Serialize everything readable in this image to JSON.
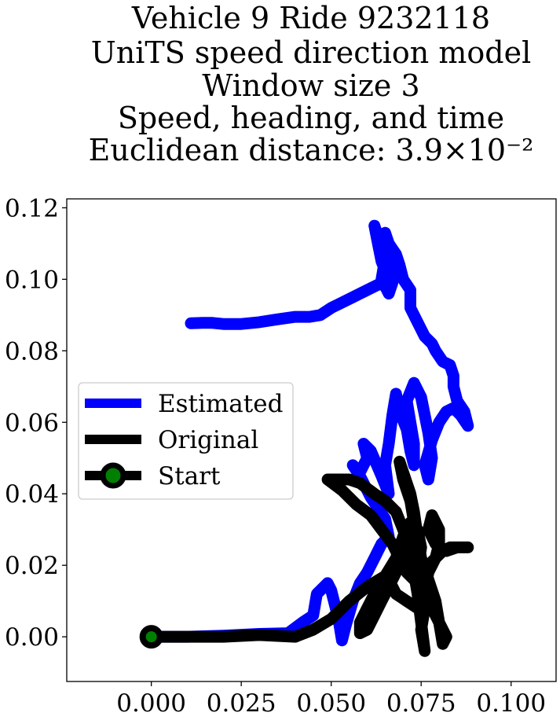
{
  "chart_data": {
    "type": "line",
    "title_lines": [
      "Vehicle 9 Ride 9232118",
      "UniTS speed direction model",
      "Window size 3",
      "Speed, heading, and time",
      "Euclidean distance: 3.9×10⁻²"
    ],
    "xlabel": "",
    "ylabel": "",
    "xlim": [
      -0.0235,
      0.1125
    ],
    "ylim": [
      -0.0125,
      0.1225
    ],
    "xticks": [
      0.0,
      0.025,
      0.05,
      0.075,
      0.1
    ],
    "xtick_labels": [
      "0.000",
      "0.025",
      "0.050",
      "0.075",
      "0.100"
    ],
    "yticks": [
      0.0,
      0.02,
      0.04,
      0.06,
      0.08,
      0.1,
      0.12
    ],
    "ytick_labels": [
      "0.00",
      "0.02",
      "0.04",
      "0.06",
      "0.08",
      "0.10",
      "0.12"
    ],
    "grid": false,
    "legend": {
      "placement": "center-left",
      "entries": [
        "Estimated",
        "Original",
        "Start"
      ]
    },
    "series": [
      {
        "name": "Estimated",
        "color": "#0000ff",
        "points": [
          [
            0.0,
            0.0
          ],
          [
            0.01,
            0.0
          ],
          [
            0.02,
            0.0003
          ],
          [
            0.03,
            0.0008
          ],
          [
            0.038,
            0.001
          ],
          [
            0.042,
            0.004
          ],
          [
            0.045,
            0.006
          ],
          [
            0.046,
            0.012
          ],
          [
            0.048,
            0.014
          ],
          [
            0.049,
            0.015
          ],
          [
            0.05,
            0.013
          ],
          [
            0.052,
            0.005
          ],
          [
            0.053,
            -0.001
          ],
          [
            0.054,
            0.003
          ],
          [
            0.056,
            0.01
          ],
          [
            0.058,
            0.015
          ],
          [
            0.06,
            0.018
          ],
          [
            0.062,
            0.022
          ],
          [
            0.064,
            0.026
          ],
          [
            0.066,
            0.028
          ],
          [
            0.065,
            0.033
          ],
          [
            0.061,
            0.039
          ],
          [
            0.058,
            0.045
          ],
          [
            0.056,
            0.048
          ],
          [
            0.058,
            0.046
          ],
          [
            0.06,
            0.05
          ],
          [
            0.059,
            0.054
          ],
          [
            0.061,
            0.052
          ],
          [
            0.064,
            0.045
          ],
          [
            0.066,
            0.04
          ],
          [
            0.065,
            0.048
          ],
          [
            0.066,
            0.054
          ],
          [
            0.067,
            0.062
          ],
          [
            0.068,
            0.068
          ],
          [
            0.069,
            0.063
          ],
          [
            0.071,
            0.058
          ],
          [
            0.072,
            0.052
          ],
          [
            0.073,
            0.048
          ],
          [
            0.073,
            0.054
          ],
          [
            0.072,
            0.06
          ],
          [
            0.071,
            0.066
          ],
          [
            0.073,
            0.071
          ],
          [
            0.075,
            0.067
          ],
          [
            0.076,
            0.062
          ],
          [
            0.077,
            0.057
          ],
          [
            0.078,
            0.05
          ],
          [
            0.077,
            0.044
          ],
          [
            0.076,
            0.048
          ],
          [
            0.078,
            0.055
          ],
          [
            0.08,
            0.06
          ],
          [
            0.082,
            0.063
          ],
          [
            0.084,
            0.064
          ],
          [
            0.086,
            0.062
          ],
          [
            0.088,
            0.059
          ],
          [
            0.087,
            0.063
          ],
          [
            0.085,
            0.066
          ],
          [
            0.084,
            0.07
          ],
          [
            0.084,
            0.073
          ],
          [
            0.083,
            0.076
          ],
          [
            0.081,
            0.077
          ],
          [
            0.079,
            0.08
          ],
          [
            0.078,
            0.082
          ],
          [
            0.076,
            0.084
          ],
          [
            0.074,
            0.088
          ],
          [
            0.072,
            0.092
          ],
          [
            0.072,
            0.097
          ],
          [
            0.07,
            0.1
          ],
          [
            0.069,
            0.104
          ],
          [
            0.068,
            0.107
          ],
          [
            0.066,
            0.11
          ],
          [
            0.065,
            0.113
          ],
          [
            0.064,
            0.11
          ],
          [
            0.066,
            0.104
          ],
          [
            0.067,
            0.099
          ],
          [
            0.066,
            0.096
          ],
          [
            0.064,
            0.1
          ],
          [
            0.065,
            0.106
          ],
          [
            0.063,
            0.112
          ],
          [
            0.062,
            0.115
          ],
          [
            0.063,
            0.11
          ],
          [
            0.064,
            0.105
          ],
          [
            0.066,
            0.1
          ],
          [
            0.064,
            0.099
          ],
          [
            0.06,
            0.097
          ],
          [
            0.056,
            0.095
          ],
          [
            0.052,
            0.093
          ],
          [
            0.05,
            0.092
          ],
          [
            0.047,
            0.09
          ],
          [
            0.044,
            0.0895
          ],
          [
            0.04,
            0.0895
          ],
          [
            0.035,
            0.0888
          ],
          [
            0.03,
            0.088
          ],
          [
            0.025,
            0.0875
          ],
          [
            0.02,
            0.0875
          ],
          [
            0.017,
            0.0878
          ],
          [
            0.014,
            0.0878
          ],
          [
            0.011,
            0.0877
          ]
        ]
      },
      {
        "name": "Original",
        "color": "#000000",
        "points": [
          [
            0.0,
            0.0
          ],
          [
            0.01,
            0.0
          ],
          [
            0.02,
            0.0
          ],
          [
            0.03,
            0.0005
          ],
          [
            0.04,
            0.0
          ],
          [
            0.045,
            0.002
          ],
          [
            0.05,
            0.005
          ],
          [
            0.055,
            0.01
          ],
          [
            0.06,
            0.014
          ],
          [
            0.065,
            0.017
          ],
          [
            0.068,
            0.022
          ],
          [
            0.07,
            0.028
          ],
          [
            0.072,
            0.032
          ],
          [
            0.074,
            0.03
          ],
          [
            0.075,
            0.025
          ],
          [
            0.074,
            0.018
          ],
          [
            0.076,
            0.012
          ],
          [
            0.078,
            0.008
          ],
          [
            0.08,
            0.004
          ],
          [
            0.082,
            0.0
          ],
          [
            0.081,
            -0.002
          ],
          [
            0.08,
            0.004
          ],
          [
            0.079,
            0.01
          ],
          [
            0.077,
            0.016
          ],
          [
            0.075,
            0.022
          ],
          [
            0.074,
            0.028
          ],
          [
            0.073,
            0.035
          ],
          [
            0.072,
            0.04
          ],
          [
            0.07,
            0.046
          ],
          [
            0.069,
            0.049
          ],
          [
            0.07,
            0.044
          ],
          [
            0.072,
            0.038
          ],
          [
            0.073,
            0.032
          ],
          [
            0.074,
            0.026
          ],
          [
            0.075,
            0.02
          ],
          [
            0.076,
            0.014
          ],
          [
            0.076,
            0.008
          ],
          [
            0.075,
            0.002
          ],
          [
            0.076,
            -0.004
          ],
          [
            0.075,
            0.004
          ],
          [
            0.074,
            0.012
          ],
          [
            0.073,
            0.018
          ],
          [
            0.072,
            0.024
          ],
          [
            0.07,
            0.03
          ],
          [
            0.068,
            0.035
          ],
          [
            0.065,
            0.038
          ],
          [
            0.062,
            0.04
          ],
          [
            0.058,
            0.043
          ],
          [
            0.055,
            0.044
          ],
          [
            0.052,
            0.044
          ],
          [
            0.049,
            0.044
          ],
          [
            0.053,
            0.041
          ],
          [
            0.057,
            0.037
          ],
          [
            0.061,
            0.034
          ],
          [
            0.064,
            0.03
          ],
          [
            0.067,
            0.026
          ],
          [
            0.069,
            0.022
          ],
          [
            0.071,
            0.018
          ],
          [
            0.073,
            0.016
          ],
          [
            0.075,
            0.018
          ],
          [
            0.077,
            0.02
          ],
          [
            0.079,
            0.022
          ],
          [
            0.081,
            0.024
          ],
          [
            0.083,
            0.025
          ],
          [
            0.086,
            0.025
          ],
          [
            0.088,
            0.025
          ],
          [
            0.085,
            0.025
          ],
          [
            0.082,
            0.024
          ],
          [
            0.079,
            0.026
          ],
          [
            0.077,
            0.03
          ],
          [
            0.078,
            0.034
          ],
          [
            0.08,
            0.03
          ],
          [
            0.08,
            0.026
          ],
          [
            0.079,
            0.022
          ],
          [
            0.077,
            0.018
          ],
          [
            0.076,
            0.012
          ],
          [
            0.074,
            0.008
          ],
          [
            0.071,
            0.01
          ],
          [
            0.068,
            0.012
          ],
          [
            0.066,
            0.016
          ],
          [
            0.064,
            0.016
          ],
          [
            0.062,
            0.012
          ],
          [
            0.06,
            0.008
          ],
          [
            0.058,
            0.004
          ],
          [
            0.058,
            0.001
          ],
          [
            0.06,
            0.002
          ],
          [
            0.062,
            0.006
          ],
          [
            0.064,
            0.01
          ],
          [
            0.066,
            0.014
          ],
          [
            0.068,
            0.018
          ],
          [
            0.07,
            0.022
          ],
          [
            0.071,
            0.026
          ]
        ]
      }
    ],
    "start_point": {
      "name": "Start",
      "x": 0.0,
      "y": 0.0,
      "fill_color": "#008000",
      "edge_color": "#000000"
    },
    "colors": {
      "estimated": "#0000ff",
      "original": "#000000",
      "start_fill": "#008000",
      "background": "#ffffff"
    }
  }
}
